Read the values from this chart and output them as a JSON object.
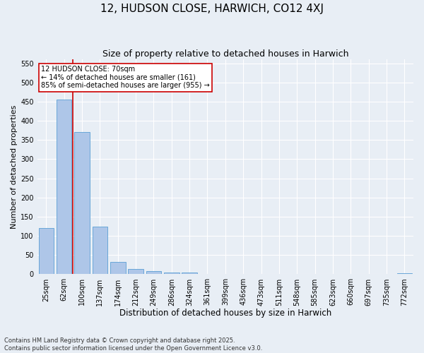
{
  "title": "12, HUDSON CLOSE, HARWICH, CO12 4XJ",
  "subtitle": "Size of property relative to detached houses in Harwich",
  "xlabel": "Distribution of detached houses by size in Harwich",
  "ylabel": "Number of detached properties",
  "categories": [
    "25sqm",
    "62sqm",
    "100sqm",
    "137sqm",
    "174sqm",
    "212sqm",
    "249sqm",
    "286sqm",
    "324sqm",
    "361sqm",
    "399sqm",
    "436sqm",
    "473sqm",
    "511sqm",
    "548sqm",
    "585sqm",
    "623sqm",
    "660sqm",
    "697sqm",
    "735sqm",
    "772sqm"
  ],
  "values": [
    120,
    455,
    370,
    125,
    33,
    14,
    9,
    5,
    5,
    1,
    0,
    0,
    1,
    0,
    0,
    1,
    0,
    0,
    0,
    0,
    3
  ],
  "bar_color": "#aec6e8",
  "bar_edge_color": "#5a9fd4",
  "bg_color": "#e8eef5",
  "grid_color": "#ffffff",
  "vline_x_pos": 1.5,
  "vline_color": "#cc0000",
  "annotation_text": "12 HUDSON CLOSE: 70sqm\n← 14% of detached houses are smaller (161)\n85% of semi-detached houses are larger (955) →",
  "annotation_box_color": "#ffffff",
  "annotation_box_edge": "#cc0000",
  "ylim": [
    0,
    560
  ],
  "yticks": [
    0,
    50,
    100,
    150,
    200,
    250,
    300,
    350,
    400,
    450,
    500,
    550
  ],
  "footnote": "Contains HM Land Registry data © Crown copyright and database right 2025.\nContains public sector information licensed under the Open Government Licence v3.0.",
  "title_fontsize": 11,
  "subtitle_fontsize": 9,
  "xlabel_fontsize": 8.5,
  "ylabel_fontsize": 8,
  "tick_fontsize": 7,
  "annot_fontsize": 7,
  "footnote_fontsize": 6
}
